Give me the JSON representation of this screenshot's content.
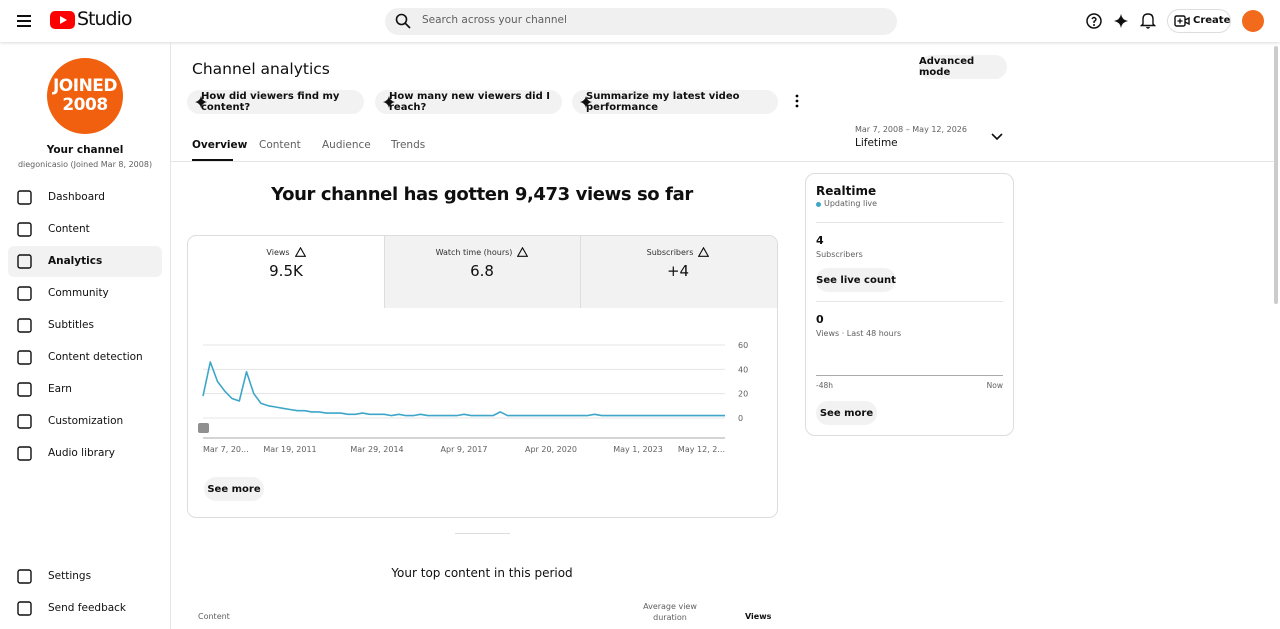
{
  "header": {
    "logo": "Studio",
    "search_placeholder": "Search across your channel",
    "create": "Create"
  },
  "sidebar": {
    "avatar_lines": [
      "JOINED",
      "2008"
    ],
    "channel_title": "Your channel",
    "channel_subtitle": "diegonicasio (Joined Mar 8, 2008)",
    "nav": [
      "Dashboard",
      "Content",
      "Analytics",
      "Community",
      "Subtitles",
      "Content detection",
      "Earn",
      "Customization",
      "Audio library"
    ],
    "footer": [
      "Settings",
      "Send feedback"
    ]
  },
  "page": {
    "title": "Channel analytics",
    "advanced": "Advanced mode",
    "prompts": [
      "How did viewers find my content?",
      "How many new viewers did I reach?",
      "Summarize my latest video performance"
    ],
    "tabs": [
      "Overview",
      "Content",
      "Audience",
      "Trends"
    ],
    "date_range": "Mar 7, 2008 – May 12, 2026",
    "period": "Lifetime",
    "headline": "Your channel has gotten 9,473 views so far",
    "metrics": [
      {
        "label": "Views",
        "value": "9.5K"
      },
      {
        "label": "Watch time (hours)",
        "value": "6.8"
      },
      {
        "label": "Subscribers",
        "value": "+4"
      }
    ],
    "see_more": "See more",
    "top_content_title": "Your top content in this period",
    "table_headers": [
      "Content",
      "Average view duration",
      "Views"
    ]
  },
  "realtime": {
    "title": "Realtime",
    "status": "Updating live",
    "subscribers_value": "4",
    "subscribers_label": "Subscribers",
    "live_count": "See live count",
    "views_value": "0",
    "views_label": "Views · Last 48 hours",
    "axis_start": "-48h",
    "axis_end": "Now",
    "see_more": "See more"
  },
  "chart_data": {
    "type": "line",
    "categories": [
      "Mar 7, 20...",
      null,
      null,
      null,
      null,
      null,
      null,
      null,
      null,
      null,
      null,
      null,
      "Mar 19, 2011",
      null,
      null,
      null,
      null,
      null,
      null,
      null,
      null,
      null,
      null,
      null,
      "Mar 29, 2014",
      null,
      null,
      null,
      null,
      null,
      null,
      null,
      null,
      null,
      null,
      null,
      "Apr 9, 2017",
      null,
      null,
      null,
      null,
      null,
      null,
      null,
      null,
      null,
      null,
      null,
      "Apr 20, 2020",
      null,
      null,
      null,
      null,
      null,
      null,
      null,
      null,
      null,
      null,
      null,
      "May 1, 2023",
      null,
      null,
      null,
      null,
      null,
      null,
      null,
      null,
      null,
      null,
      null,
      "May 12, 2..."
    ],
    "values": [
      18,
      46,
      30,
      22,
      16,
      14,
      38,
      20,
      12,
      10,
      9,
      8,
      7,
      6,
      6,
      5,
      5,
      4,
      4,
      4,
      3,
      3,
      4,
      3,
      3,
      3,
      2,
      3,
      2,
      2,
      3,
      2,
      2,
      2,
      2,
      2,
      3,
      2,
      2,
      2,
      2,
      5,
      2,
      2,
      2,
      2,
      2,
      2,
      2,
      2,
      2,
      2,
      2,
      2,
      3,
      2,
      2,
      2,
      2,
      2,
      2,
      2,
      2,
      2,
      2,
      2,
      2,
      2,
      2,
      2,
      2,
      2,
      2
    ],
    "color": "#3ea6c9",
    "ylim": [
      0,
      60
    ],
    "yticks": [
      0,
      20,
      40,
      60
    ],
    "grid": true
  }
}
